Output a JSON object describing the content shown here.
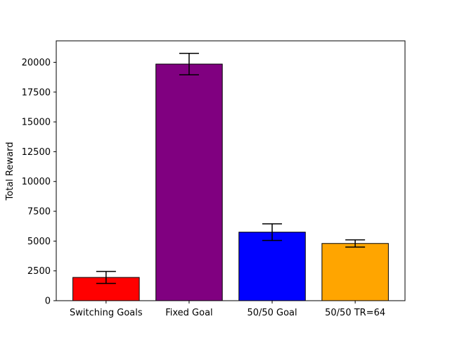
{
  "chart_data": {
    "type": "bar",
    "title": "",
    "xlabel": "",
    "ylabel": "Total Reward",
    "ylim": [
      0,
      21800
    ],
    "yticks": [
      0,
      2500,
      5000,
      7500,
      10000,
      12500,
      15000,
      17500,
      20000
    ],
    "grid": false,
    "categories": [
      "Switching Goals",
      "Fixed Goal",
      "50/50 Goal",
      "50/50 TR=64"
    ],
    "values": [
      1950,
      19850,
      5750,
      4800
    ],
    "errors": [
      500,
      900,
      700,
      300
    ],
    "colors": [
      "#ff0000",
      "#800080",
      "#0000ff",
      "#ffa500"
    ],
    "edge_color": "#000000"
  }
}
